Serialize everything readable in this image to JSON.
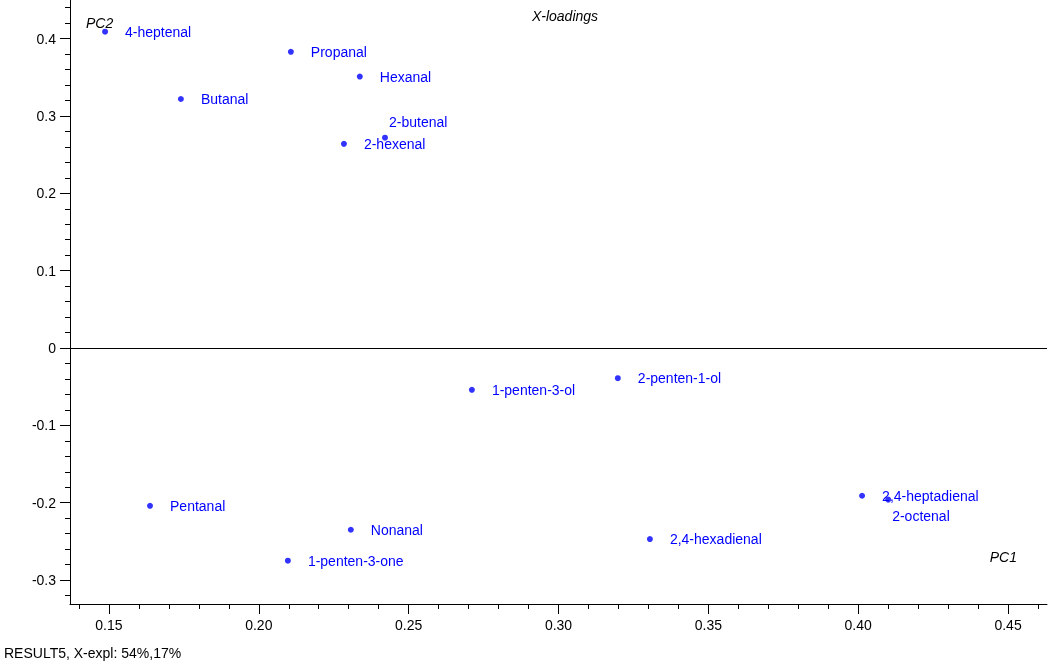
{
  "chart_data": {
    "type": "scatter",
    "title": "X-loadings",
    "xlabel": "PC1",
    "ylabel": "PC2",
    "x": [
      0.1487,
      0.2107,
      0.2337,
      0.174,
      0.2284,
      0.2421,
      0.2711,
      0.3198,
      0.1637,
      0.2307,
      0.2097,
      0.3305,
      0.4013,
      0.41
    ],
    "series": [
      {
        "color": "#0000ff",
        "values": [
          0.409,
          0.383,
          0.351,
          0.322,
          0.264,
          0.272,
          -0.054,
          -0.039,
          -0.204,
          -0.235,
          -0.275,
          -0.247,
          -0.191,
          -0.196
        ]
      }
    ],
    "marker": "circle",
    "grid": false,
    "xlim": [
      0.137,
      0.463
    ],
    "ylim": [
      -0.331,
      0.45
    ],
    "xticks": [
      0.15,
      {
        "value": 0.2,
        "label": "0.20"
      },
      0.25,
      {
        "value": 0.3,
        "label": "0.30"
      },
      0.35,
      {
        "value": 0.4,
        "label": "0.40"
      },
      0.45
    ],
    "yticks": [
      -0.3,
      -0.2,
      -0.1,
      0,
      0.1,
      0.2,
      0.3,
      0.4
    ],
    "ref_lines": [
      {
        "axis": "y",
        "value": 0,
        "color": "#000000"
      }
    ],
    "annotations": [
      {
        "text": "4-heptenal",
        "x": 0.1487,
        "y": 0.409
      },
      {
        "text": "Propanal",
        "x": 0.2107,
        "y": 0.383
      },
      {
        "text": "Hexanal",
        "x": 0.2337,
        "y": 0.351
      },
      {
        "text": "Butanal",
        "x": 0.174,
        "y": 0.322
      },
      {
        "text": "2-hexenal",
        "x": 0.2284,
        "y": 0.264
      },
      {
        "text": "2-butenal",
        "x": 0.2421,
        "y": 0.272
      },
      {
        "text": "1-penten-3-ol",
        "x": 0.2711,
        "y": -0.054
      },
      {
        "text": "2-penten-1-ol",
        "x": 0.3198,
        "y": -0.039
      },
      {
        "text": "Pentanal",
        "x": 0.1637,
        "y": -0.204
      },
      {
        "text": "Nonanal",
        "x": 0.2307,
        "y": -0.235
      },
      {
        "text": "1-penten-3-one",
        "x": 0.2097,
        "y": -0.275
      },
      {
        "text": "2,4-hexadienal",
        "x": 0.3305,
        "y": -0.247
      },
      {
        "text": "2,4-heptadienal",
        "x": 0.4013,
        "y": -0.191
      },
      {
        "text": "2-octenal",
        "x": 0.41,
        "y": -0.196
      },
      "RESULT5, X-expl: 54%,17%"
    ]
  }
}
